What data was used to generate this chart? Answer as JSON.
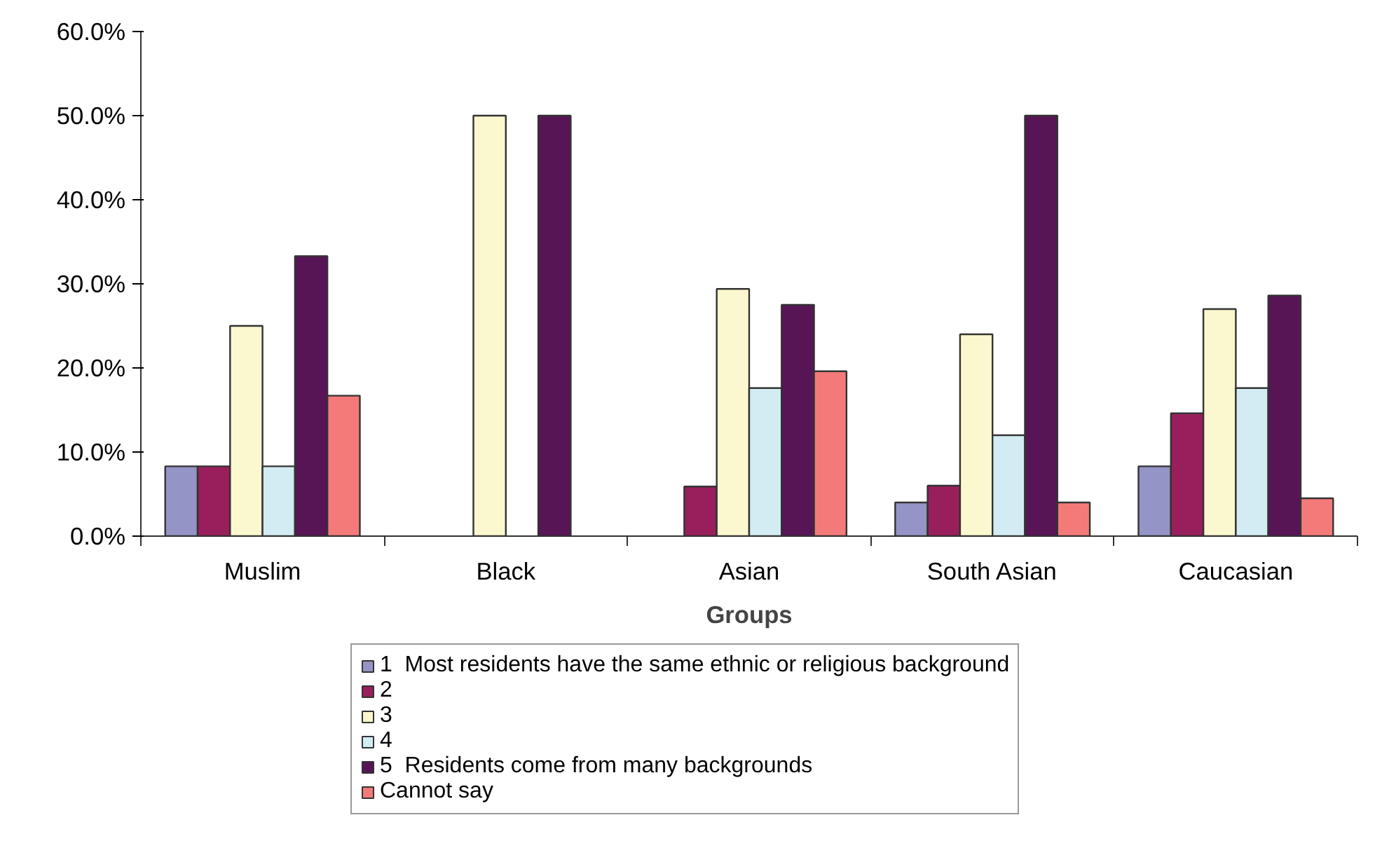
{
  "chart_data": {
    "type": "bar",
    "xlabel": "Groups",
    "categories": [
      "Muslim",
      "Black",
      "Asian",
      "South Asian",
      "Caucasian"
    ],
    "series": [
      {
        "name": "1  Most residents have the same ethnic or religious background",
        "color": "#9494c6",
        "values": [
          8.3,
          null,
          null,
          4.0,
          8.3
        ]
      },
      {
        "name": "2",
        "color": "#991f5c",
        "values": [
          8.3,
          null,
          5.9,
          6.0,
          14.6
        ]
      },
      {
        "name": "3",
        "color": "#fbf7cf",
        "values": [
          25.0,
          50.0,
          29.4,
          24.0,
          27.0
        ]
      },
      {
        "name": "4",
        "color": "#d3ecf3",
        "values": [
          8.3,
          null,
          17.6,
          12.0,
          17.6
        ]
      },
      {
        "name": "5  Residents come from many backgrounds",
        "color": "#581556",
        "values": [
          33.3,
          50.0,
          27.5,
          50.0,
          28.6
        ]
      },
      {
        "name": "Cannot say",
        "color": "#f47a7a",
        "values": [
          16.7,
          null,
          19.6,
          4.0,
          4.5
        ]
      }
    ],
    "ylim": [
      0,
      60
    ],
    "yticks": [
      {
        "value": 0,
        "label": "0.0%"
      },
      {
        "value": 10,
        "label": "10.0%"
      },
      {
        "value": 20,
        "label": "20.0%"
      },
      {
        "value": 30,
        "label": "30.0%"
      },
      {
        "value": 40,
        "label": "40.0%"
      },
      {
        "value": 50,
        "label": "50.0%"
      },
      {
        "value": 60,
        "label": "60.0%"
      }
    ],
    "grid": false,
    "legend": "bottom"
  }
}
